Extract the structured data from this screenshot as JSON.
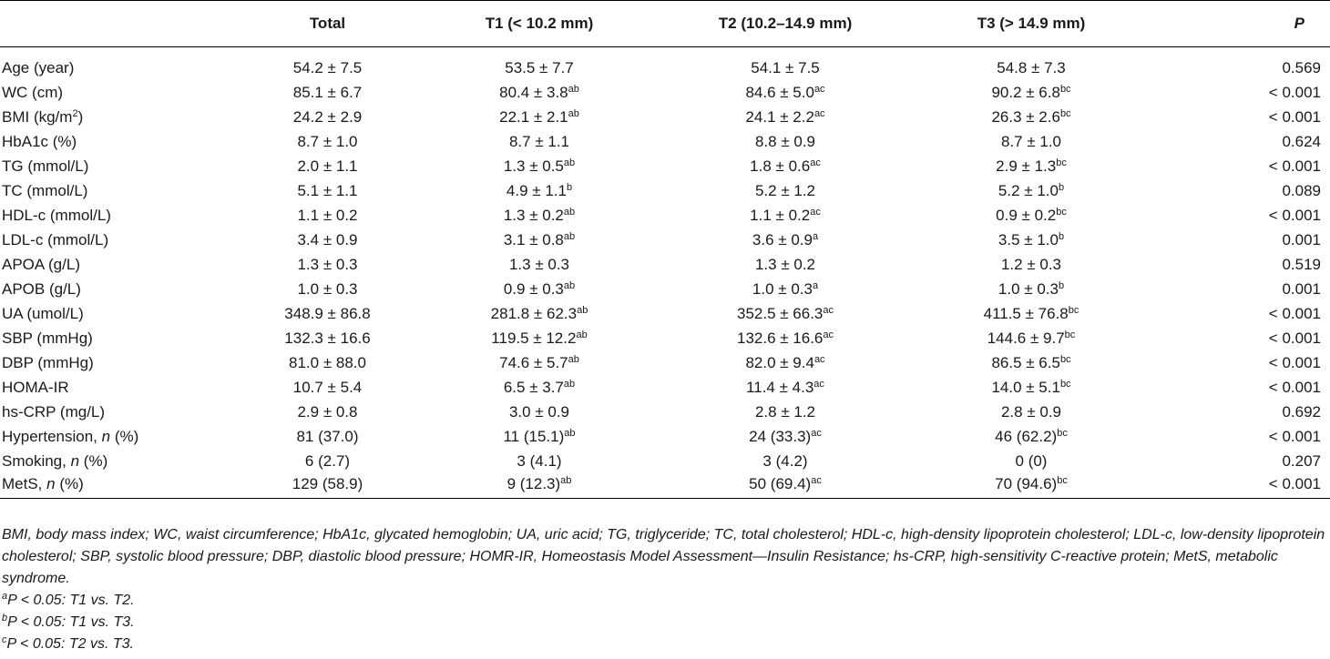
{
  "table": {
    "headers": [
      "",
      "Total",
      "T1 (< 10.2 mm)",
      "T2 (10.2–14.9 mm)",
      "T3 (> 14.9 mm)",
      "P"
    ],
    "rows": [
      {
        "label": "Age (year)",
        "label_sup": "",
        "label_suffix": "",
        "italic_n": false,
        "cells": [
          {
            "v": "54.2 ± 7.5",
            "s": ""
          },
          {
            "v": "53.5 ± 7.7",
            "s": ""
          },
          {
            "v": "54.1 ± 7.5",
            "s": ""
          },
          {
            "v": "54.8 ± 7.3",
            "s": ""
          }
        ],
        "p": "0.569"
      },
      {
        "label": "WC (cm)",
        "label_sup": "",
        "label_suffix": "",
        "italic_n": false,
        "cells": [
          {
            "v": "85.1 ± 6.7",
            "s": ""
          },
          {
            "v": "80.4 ± 3.8",
            "s": "ab"
          },
          {
            "v": "84.6 ± 5.0",
            "s": "ac"
          },
          {
            "v": "90.2 ± 6.8",
            "s": "bc"
          }
        ],
        "p": "< 0.001"
      },
      {
        "label": "BMI (kg/m",
        "label_sup": "2",
        "label_suffix": ")",
        "italic_n": false,
        "cells": [
          {
            "v": "24.2 ± 2.9",
            "s": ""
          },
          {
            "v": "22.1 ± 2.1",
            "s": "ab"
          },
          {
            "v": "24.1 ± 2.2",
            "s": "ac"
          },
          {
            "v": "26.3 ± 2.6",
            "s": "bc"
          }
        ],
        "p": "< 0.001"
      },
      {
        "label": "HbA1c (%)",
        "label_sup": "",
        "label_suffix": "",
        "italic_n": false,
        "cells": [
          {
            "v": "8.7 ± 1.0",
            "s": ""
          },
          {
            "v": "8.7 ± 1.1",
            "s": ""
          },
          {
            "v": "8.8 ± 0.9",
            "s": ""
          },
          {
            "v": "8.7 ± 1.0",
            "s": ""
          }
        ],
        "p": "0.624"
      },
      {
        "label": "TG (mmol/L)",
        "label_sup": "",
        "label_suffix": "",
        "italic_n": false,
        "cells": [
          {
            "v": "2.0 ± 1.1",
            "s": ""
          },
          {
            "v": "1.3 ± 0.5",
            "s": "ab"
          },
          {
            "v": "1.8 ± 0.6",
            "s": "ac"
          },
          {
            "v": "2.9 ± 1.3",
            "s": "bc"
          }
        ],
        "p": "< 0.001"
      },
      {
        "label": "TC (mmol/L)",
        "label_sup": "",
        "label_suffix": "",
        "italic_n": false,
        "cells": [
          {
            "v": "5.1 ± 1.1",
            "s": ""
          },
          {
            "v": "4.9 ± 1.1",
            "s": "b"
          },
          {
            "v": "5.2 ± 1.2",
            "s": ""
          },
          {
            "v": "5.2 ± 1.0",
            "s": "b"
          }
        ],
        "p": "0.089"
      },
      {
        "label": "HDL-c (mmol/L)",
        "label_sup": "",
        "label_suffix": "",
        "italic_n": false,
        "cells": [
          {
            "v": "1.1 ± 0.2",
            "s": ""
          },
          {
            "v": "1.3 ± 0.2",
            "s": "ab"
          },
          {
            "v": "1.1 ± 0.2",
            "s": "ac"
          },
          {
            "v": "0.9 ± 0.2",
            "s": "bc"
          }
        ],
        "p": "< 0.001"
      },
      {
        "label": "LDL-c (mmol/L)",
        "label_sup": "",
        "label_suffix": "",
        "italic_n": false,
        "cells": [
          {
            "v": "3.4 ± 0.9",
            "s": ""
          },
          {
            "v": "3.1 ± 0.8",
            "s": "ab"
          },
          {
            "v": "3.6 ± 0.9",
            "s": "a"
          },
          {
            "v": "3.5 ± 1.0",
            "s": "b"
          }
        ],
        "p": "0.001"
      },
      {
        "label": "APOA (g/L)",
        "label_sup": "",
        "label_suffix": "",
        "italic_n": false,
        "cells": [
          {
            "v": "1.3 ± 0.3",
            "s": ""
          },
          {
            "v": "1.3 ± 0.3",
            "s": ""
          },
          {
            "v": "1.3 ± 0.2",
            "s": ""
          },
          {
            "v": "1.2 ± 0.3",
            "s": ""
          }
        ],
        "p": "0.519"
      },
      {
        "label": "APOB (g/L)",
        "label_sup": "",
        "label_suffix": "",
        "italic_n": false,
        "cells": [
          {
            "v": "1.0 ± 0.3",
            "s": ""
          },
          {
            "v": "0.9 ± 0.3",
            "s": "ab"
          },
          {
            "v": "1.0 ± 0.3",
            "s": "a"
          },
          {
            "v": "1.0 ± 0.3",
            "s": "b"
          }
        ],
        "p": "0.001"
      },
      {
        "label": "UA (umol/L)",
        "label_sup": "",
        "label_suffix": "",
        "italic_n": false,
        "cells": [
          {
            "v": "348.9 ± 86.8",
            "s": ""
          },
          {
            "v": "281.8 ± 62.3",
            "s": "ab"
          },
          {
            "v": "352.5 ± 66.3",
            "s": "ac"
          },
          {
            "v": "411.5 ± 76.8",
            "s": "bc"
          }
        ],
        "p": "< 0.001"
      },
      {
        "label": "SBP (mmHg)",
        "label_sup": "",
        "label_suffix": "",
        "italic_n": false,
        "cells": [
          {
            "v": "132.3 ± 16.6",
            "s": ""
          },
          {
            "v": "119.5 ± 12.2",
            "s": "ab"
          },
          {
            "v": "132.6 ± 16.6",
            "s": "ac"
          },
          {
            "v": "144.6 ± 9.7",
            "s": "bc"
          }
        ],
        "p": "< 0.001"
      },
      {
        "label": "DBP (mmHg)",
        "label_sup": "",
        "label_suffix": "",
        "italic_n": false,
        "cells": [
          {
            "v": "81.0 ± 88.0",
            "s": ""
          },
          {
            "v": "74.6 ± 5.7",
            "s": "ab"
          },
          {
            "v": "82.0 ± 9.4",
            "s": "ac"
          },
          {
            "v": "86.5 ± 6.5",
            "s": "bc"
          }
        ],
        "p": "< 0.001"
      },
      {
        "label": "HOMA-IR",
        "label_sup": "",
        "label_suffix": "",
        "italic_n": false,
        "cells": [
          {
            "v": "10.7 ± 5.4",
            "s": ""
          },
          {
            "v": "6.5 ± 3.7",
            "s": "ab"
          },
          {
            "v": "11.4 ± 4.3",
            "s": "ac"
          },
          {
            "v": "14.0 ± 5.1",
            "s": "bc"
          }
        ],
        "p": "< 0.001"
      },
      {
        "label": "hs-CRP (mg/L)",
        "label_sup": "",
        "label_suffix": "",
        "italic_n": false,
        "cells": [
          {
            "v": "2.9 ± 0.8",
            "s": ""
          },
          {
            "v": "3.0 ± 0.9",
            "s": ""
          },
          {
            "v": "2.8 ± 1.2",
            "s": ""
          },
          {
            "v": "2.8 ± 0.9",
            "s": ""
          }
        ],
        "p": "0.692"
      },
      {
        "label": "Hypertension, ",
        "label_sup": "",
        "label_suffix": " (%)",
        "italic_n": true,
        "cells": [
          {
            "v": "81 (37.0)",
            "s": ""
          },
          {
            "v": "11 (15.1)",
            "s": "ab"
          },
          {
            "v": "24 (33.3)",
            "s": "ac"
          },
          {
            "v": "46 (62.2)",
            "s": "bc"
          }
        ],
        "p": "< 0.001"
      },
      {
        "label": "Smoking, ",
        "label_sup": "",
        "label_suffix": " (%)",
        "italic_n": true,
        "cells": [
          {
            "v": "6 (2.7)",
            "s": ""
          },
          {
            "v": "3 (4.1)",
            "s": ""
          },
          {
            "v": "3 (4.2)",
            "s": ""
          },
          {
            "v": "0 (0)",
            "s": ""
          }
        ],
        "p": "0.207"
      },
      {
        "label": "MetS, ",
        "label_sup": "",
        "label_suffix": " (%)",
        "italic_n": true,
        "cells": [
          {
            "v": "129 (58.9)",
            "s": ""
          },
          {
            "v": "9 (12.3)",
            "s": "ab"
          },
          {
            "v": "50 (69.4)",
            "s": "ac"
          },
          {
            "v": "70 (94.6)",
            "s": "bc"
          }
        ],
        "p": "< 0.001"
      }
    ],
    "n_symbol": "n"
  },
  "notes": {
    "abbreviations": "BMI, body mass index; WC, waist circumference; HbA1c, glycated hemoglobin; UA, uric acid; TG, triglyceride; TC, total cholesterol; HDL-c, high-density lipoprotein cholesterol; LDL-c, low-density lipoprotein cholesterol; SBP, systolic blood pressure; DBP, diastolic blood pressure; HOMR-IR, Homeostasis Model Assessment—Insulin Resistance; hs-CRP, high-sensitivity C-reactive protein; MetS, metabolic syndrome.",
    "footnotes": [
      {
        "mark": "a",
        "text": "P < 0.05: T1 vs. T2."
      },
      {
        "mark": "b",
        "text": "P < 0.05: T1 vs. T3."
      },
      {
        "mark": "c",
        "text": "P < 0.05: T2 vs. T3."
      }
    ]
  }
}
